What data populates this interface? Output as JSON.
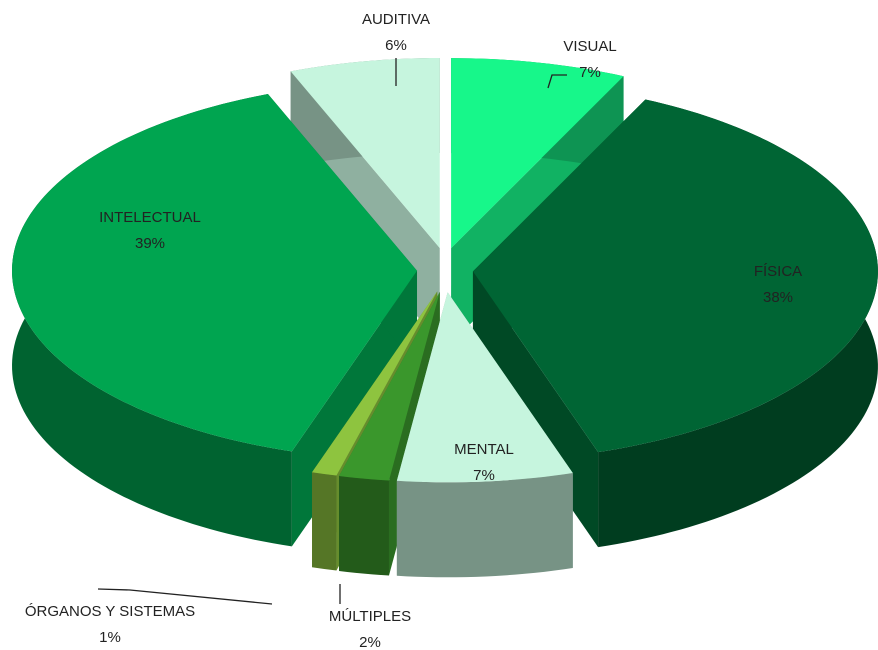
{
  "chart_data": {
    "type": "pie3d",
    "categories": [
      "VISUAL",
      "FÍSICA",
      "MENTAL",
      "MÚLTIPLES",
      "ÓRGANOS Y SISTEMAS",
      "INTELECTUAL",
      "AUDITIVA"
    ],
    "values": [
      7,
      38,
      7,
      2,
      1,
      39,
      6
    ],
    "value_labels": [
      "7%",
      "38%",
      "7%",
      "2%",
      "1%",
      "39%",
      "6%"
    ],
    "colors": [
      "#17f78a",
      "#006534",
      "#c6f5de",
      "#3a972c",
      "#8ec43f",
      "#00a550",
      "#c6f5de"
    ]
  }
}
